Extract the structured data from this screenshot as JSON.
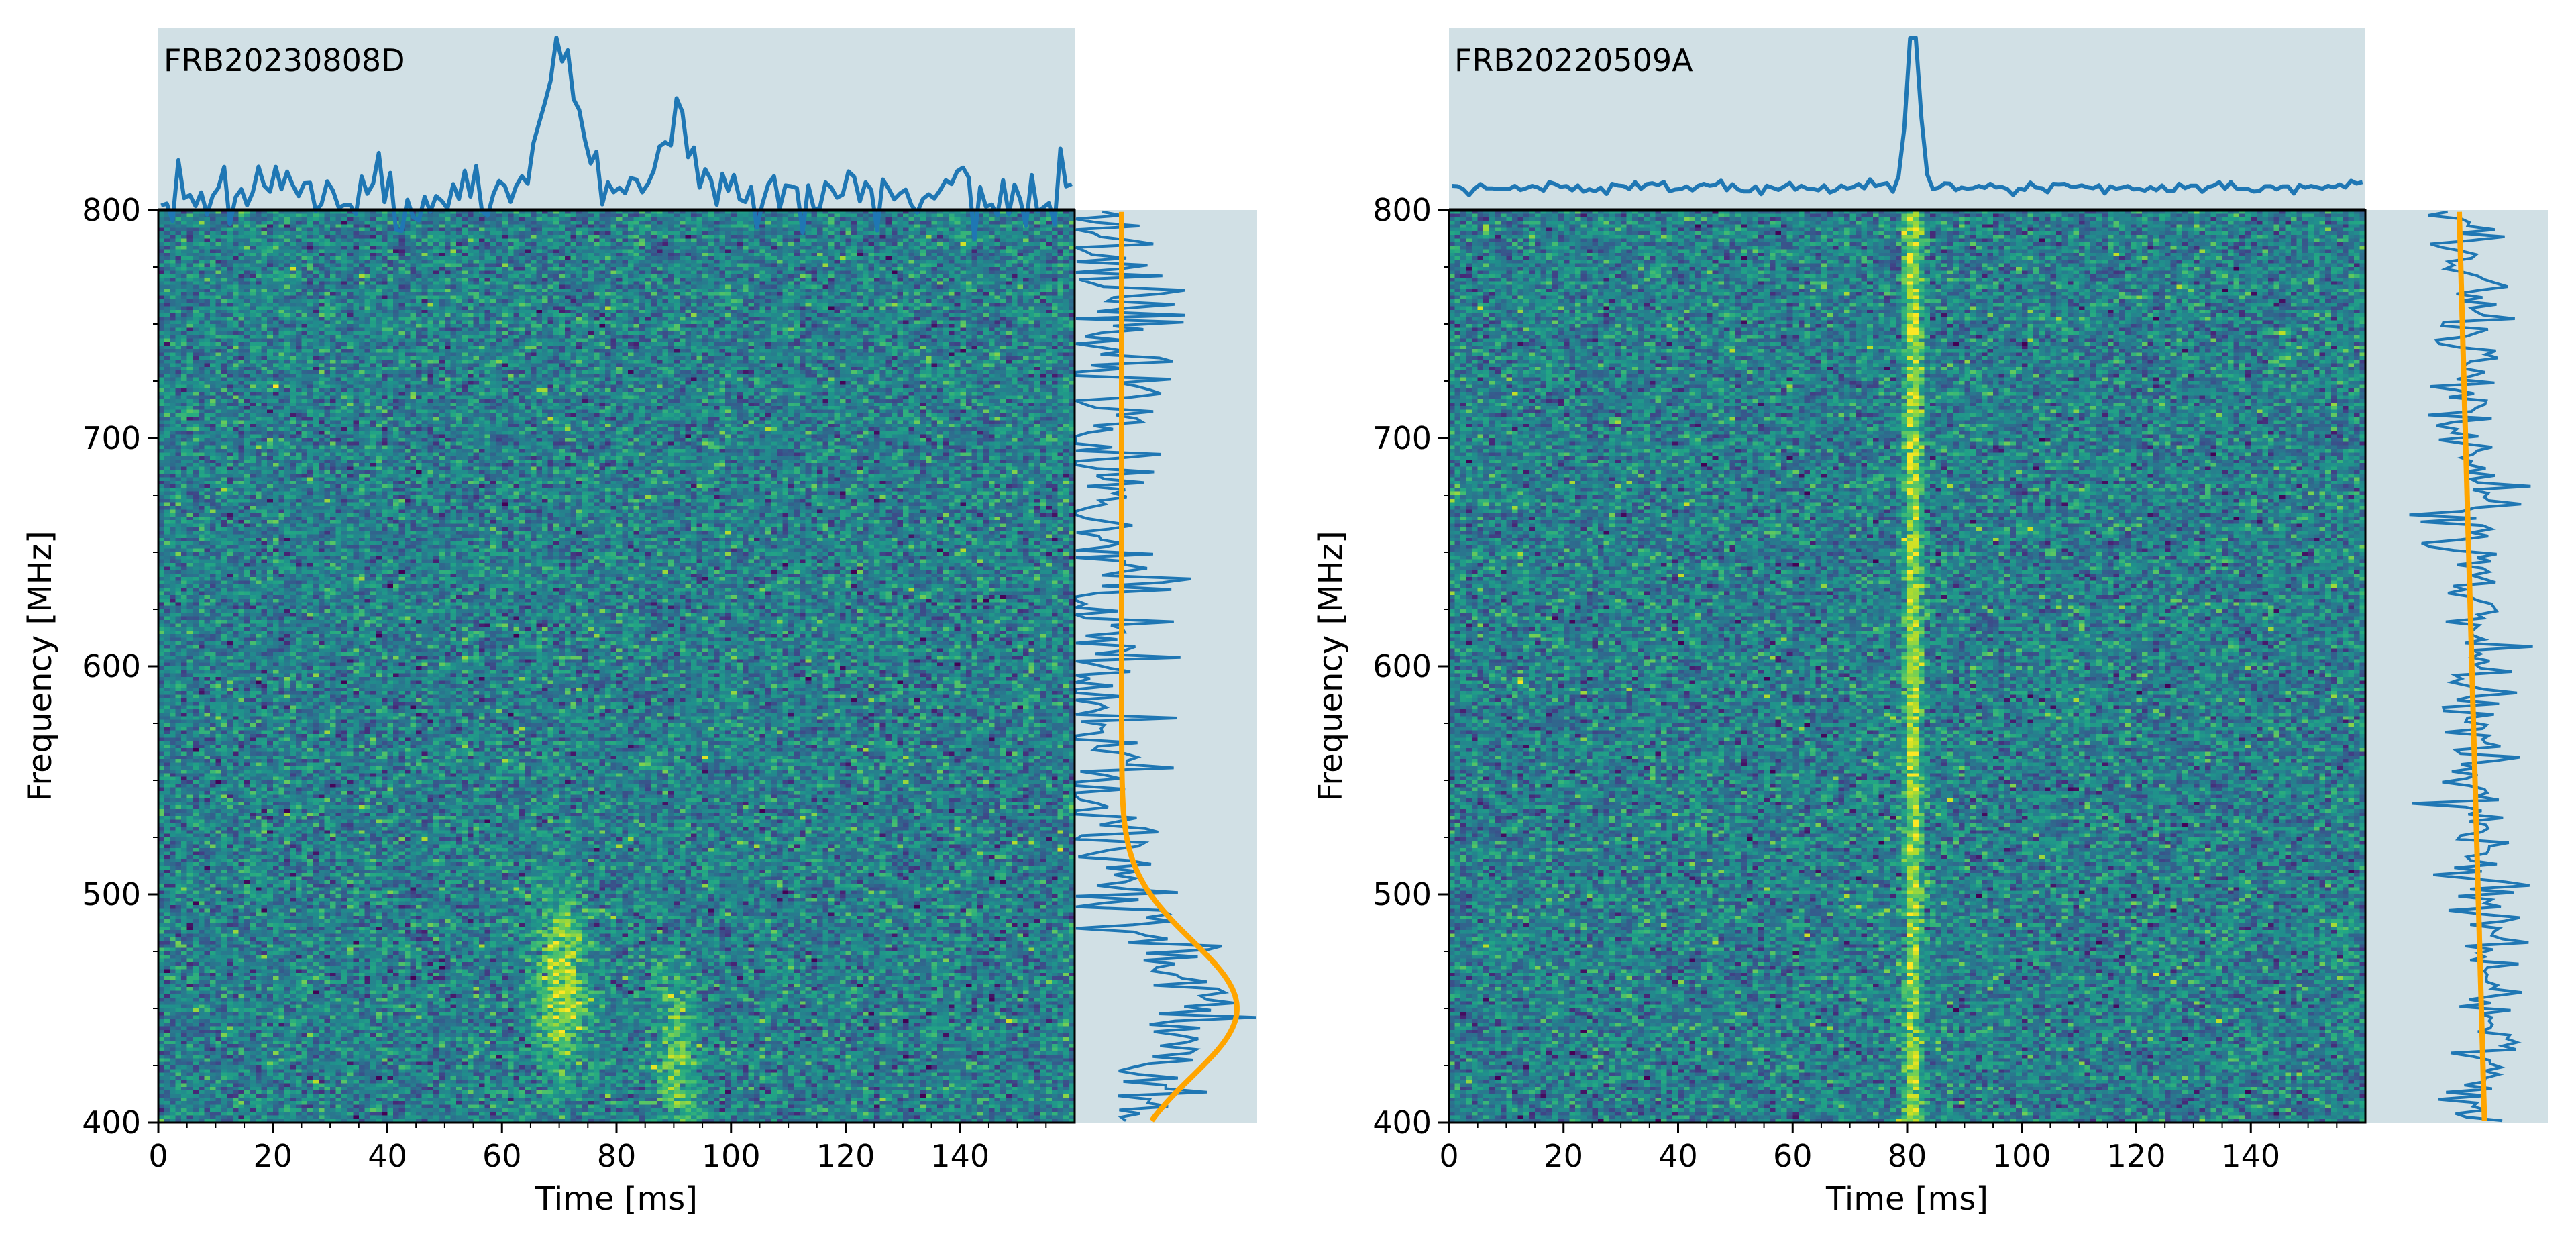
{
  "colors": {
    "panel_bg": "#d1e0e5",
    "profile_line": "#1f77b4",
    "fit_line": "#ffa500",
    "colormap": "viridis"
  },
  "chart_data": [
    {
      "type": "heatmap",
      "title": "FRB20230808D",
      "xlabel": "Time [ms]",
      "ylabel": "Frequency [MHz]",
      "xlim": [
        0,
        160
      ],
      "ylim": [
        400,
        800
      ],
      "xticks": [
        0,
        20,
        40,
        60,
        80,
        100,
        120,
        140
      ],
      "yticks": [
        400,
        500,
        600,
        700,
        800
      ],
      "bursts": [
        {
          "time_ms": 70.5,
          "freq_center_mhz": 460,
          "time_width_ms": 3.2,
          "freq_width_mhz": 28,
          "amplitude": 1.0
        },
        {
          "time_ms": 90.5,
          "freq_center_mhz": 428,
          "time_width_ms": 2.6,
          "freq_width_mhz": 24,
          "amplitude": 0.75
        }
      ],
      "time_profile": {
        "peak_times_ms": [
          70.5,
          90.5
        ],
        "relative_peaks": [
          1.0,
          0.55
        ]
      },
      "spectrum_fit": {
        "model": "gaussian",
        "center_mhz": 450,
        "width_mhz": 30,
        "relative_amplitude": 1.0
      }
    },
    {
      "type": "heatmap",
      "title": "FRB20220509A",
      "xlabel": "Time [ms]",
      "ylabel": "Frequency [MHz]",
      "xlim": [
        0,
        160
      ],
      "ylim": [
        400,
        800
      ],
      "xticks": [
        0,
        20,
        40,
        60,
        80,
        100,
        120,
        140
      ],
      "yticks": [
        400,
        500,
        600,
        700,
        800
      ],
      "bursts": [
        {
          "time_ms": 81.0,
          "freq_center_mhz": 600,
          "time_width_ms": 1.1,
          "freq_width_mhz": 0,
          "amplitude": 1.0
        }
      ],
      "time_profile": {
        "peak_times_ms": [
          81.0
        ],
        "relative_peaks": [
          1.0
        ]
      },
      "spectrum_fit": {
        "model": "linear",
        "value_at_800_mhz": 0.45,
        "value_at_400_mhz": 0.62
      }
    }
  ]
}
